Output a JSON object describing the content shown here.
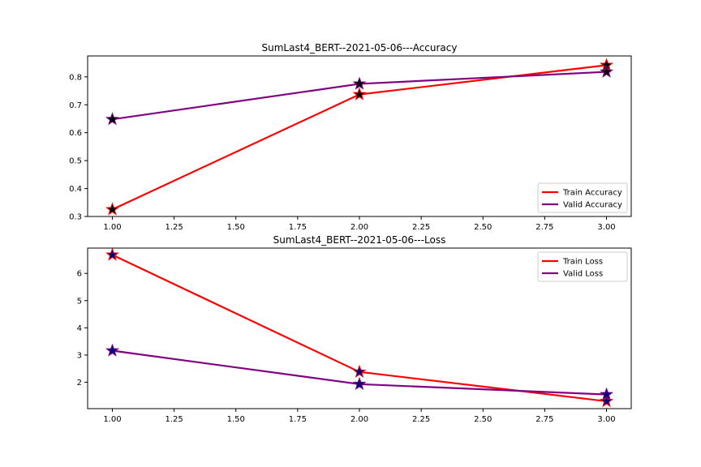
{
  "chart_data": [
    {
      "type": "line",
      "title": "SumLast4_BERT--2021-05-06---Accuracy",
      "xlabel": "",
      "ylabel": "",
      "x": [
        1.0,
        2.0,
        3.0
      ],
      "xlim": [
        0.9,
        3.1
      ],
      "ylim": [
        0.3,
        0.875
      ],
      "xticks": [
        "1.00",
        "1.25",
        "1.50",
        "1.75",
        "2.00",
        "2.25",
        "2.50",
        "2.75",
        "3.00"
      ],
      "yticks": [
        "0.3",
        "0.4",
        "0.5",
        "0.6",
        "0.7",
        "0.8"
      ],
      "legend_position": "lower-right",
      "marker": "star",
      "marker_color": "#000000",
      "series": [
        {
          "name": "Train Accuracy",
          "color": "#ff0000",
          "values": [
            0.325,
            0.737,
            0.842
          ]
        },
        {
          "name": "Valid Accuracy",
          "color": "#800080",
          "values": [
            0.648,
            0.775,
            0.818
          ]
        }
      ]
    },
    {
      "type": "line",
      "title": "SumLast4_BERT--2021-05-06---Loss",
      "xlabel": "",
      "ylabel": "",
      "x": [
        1.0,
        2.0,
        3.0
      ],
      "xlim": [
        0.9,
        3.1
      ],
      "ylim": [
        1.03,
        6.93
      ],
      "xticks": [
        "1.00",
        "1.25",
        "1.50",
        "1.75",
        "2.00",
        "2.25",
        "2.50",
        "2.75",
        "3.00"
      ],
      "yticks": [
        "2",
        "3",
        "4",
        "5",
        "6"
      ],
      "legend_position": "upper-right",
      "marker": "star",
      "marker_color": "#000080",
      "series": [
        {
          "name": "Train Loss",
          "color": "#ff0000",
          "values": [
            6.68,
            2.38,
            1.3
          ]
        },
        {
          "name": "Valid Loss",
          "color": "#800080",
          "values": [
            3.16,
            1.93,
            1.55
          ]
        }
      ]
    }
  ]
}
